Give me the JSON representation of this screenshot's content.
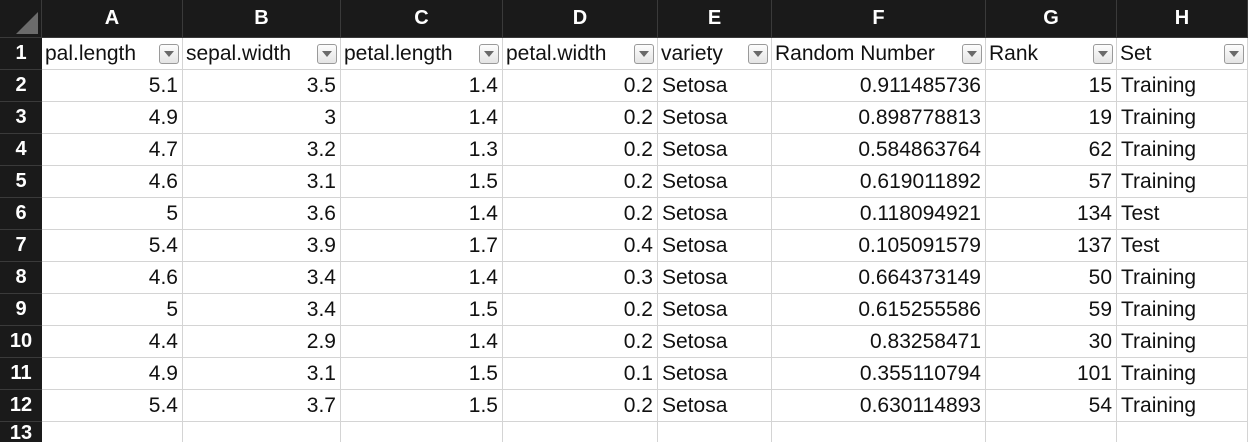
{
  "columns": [
    "A",
    "B",
    "C",
    "D",
    "E",
    "F",
    "G",
    "H"
  ],
  "row_numbers": [
    "1",
    "2",
    "3",
    "4",
    "5",
    "6",
    "7",
    "8",
    "9",
    "10",
    "11",
    "12",
    "13"
  ],
  "headers": [
    "pal.length",
    "sepal.width",
    "petal.length",
    "petal.width",
    "variety",
    "Random Number",
    "Rank",
    "Set"
  ],
  "rows": [
    [
      "5.1",
      "3.5",
      "1.4",
      "0.2",
      "Setosa",
      "0.911485736",
      "15",
      "Training"
    ],
    [
      "4.9",
      "3",
      "1.4",
      "0.2",
      "Setosa",
      "0.898778813",
      "19",
      "Training"
    ],
    [
      "4.7",
      "3.2",
      "1.3",
      "0.2",
      "Setosa",
      "0.584863764",
      "62",
      "Training"
    ],
    [
      "4.6",
      "3.1",
      "1.5",
      "0.2",
      "Setosa",
      "0.619011892",
      "57",
      "Training"
    ],
    [
      "5",
      "3.6",
      "1.4",
      "0.2",
      "Setosa",
      "0.118094921",
      "134",
      "Test"
    ],
    [
      "5.4",
      "3.9",
      "1.7",
      "0.4",
      "Setosa",
      "0.105091579",
      "137",
      "Test"
    ],
    [
      "4.6",
      "3.4",
      "1.4",
      "0.3",
      "Setosa",
      "0.664373149",
      "50",
      "Training"
    ],
    [
      "5",
      "3.4",
      "1.5",
      "0.2",
      "Setosa",
      "0.615255586",
      "59",
      "Training"
    ],
    [
      "4.4",
      "2.9",
      "1.4",
      "0.2",
      "Setosa",
      "0.83258471",
      "30",
      "Training"
    ],
    [
      "4.9",
      "3.1",
      "1.5",
      "0.1",
      "Setosa",
      "0.355110794",
      "101",
      "Training"
    ],
    [
      "5.4",
      "3.7",
      "1.5",
      "0.2",
      "Setosa",
      "0.630114893",
      "54",
      "Training"
    ]
  ],
  "icons": {
    "filter": "chevron-down-icon",
    "select_all": "select-all-triangle-icon"
  },
  "colors": {
    "header_bg": "#1a1a1a",
    "header_text": "#ffffff",
    "gridline": "#d4d4d4"
  }
}
